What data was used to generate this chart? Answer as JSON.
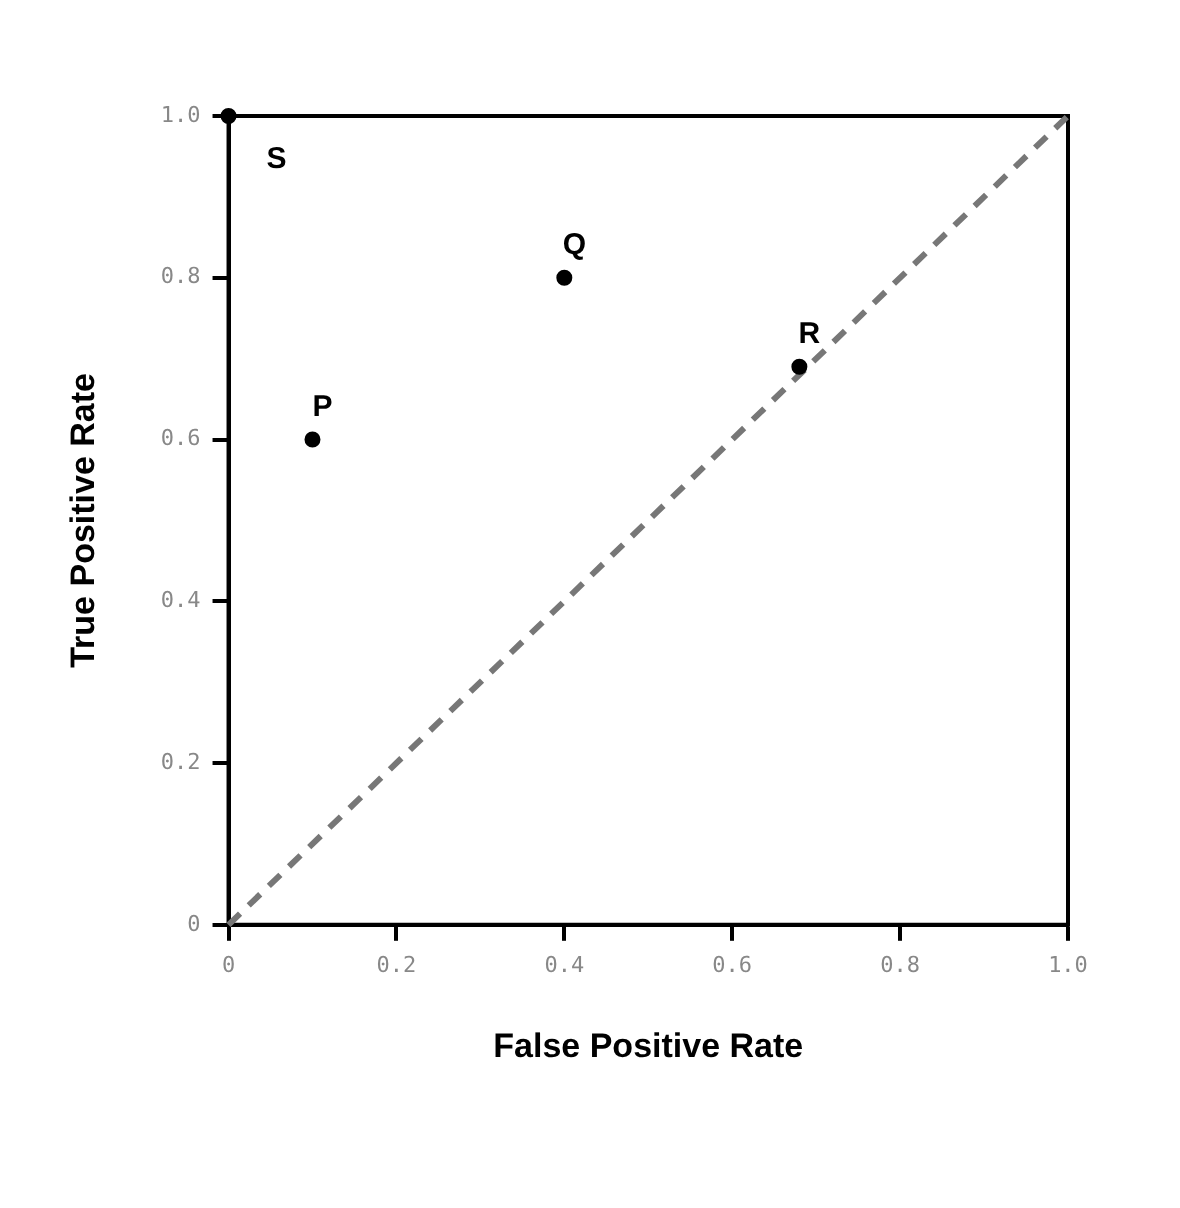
{
  "chart_data": {
    "type": "scatter",
    "xlabel": "False Positive Rate",
    "ylabel": "True Positive Rate",
    "xlim": [
      0,
      1
    ],
    "ylim": [
      0,
      1
    ],
    "xticks": [
      0,
      0.2,
      0.4,
      0.6,
      {
        "value": 0.8,
        "label": "0.8"
      },
      {
        "value": 1,
        "label": "1.0"
      }
    ],
    "yticks": [
      0,
      0.2,
      0.4,
      0.6,
      0.8,
      {
        "value": 1,
        "label": "1.0"
      }
    ],
    "grid": false,
    "legend": false,
    "marker": "circle",
    "series": [
      {
        "name": "S",
        "color": "#000000",
        "x": [
          0
        ],
        "values": [
          1
        ]
      },
      {
        "name": "P",
        "color": "#000000",
        "x": [
          0.1
        ],
        "values": [
          0.6
        ]
      },
      {
        "name": "Q",
        "color": "#000000",
        "x": [
          0.4
        ],
        "values": [
          0.8
        ]
      },
      {
        "name": "R",
        "color": "#000000",
        "x": [
          0.68
        ],
        "values": [
          0.69
        ]
      },
      {
        "type": "line",
        "color": "#777777",
        "line_style": "dashed",
        "marker": "none",
        "x": [
          0,
          1
        ],
        "values": [
          0,
          1
        ]
      }
    ]
  }
}
